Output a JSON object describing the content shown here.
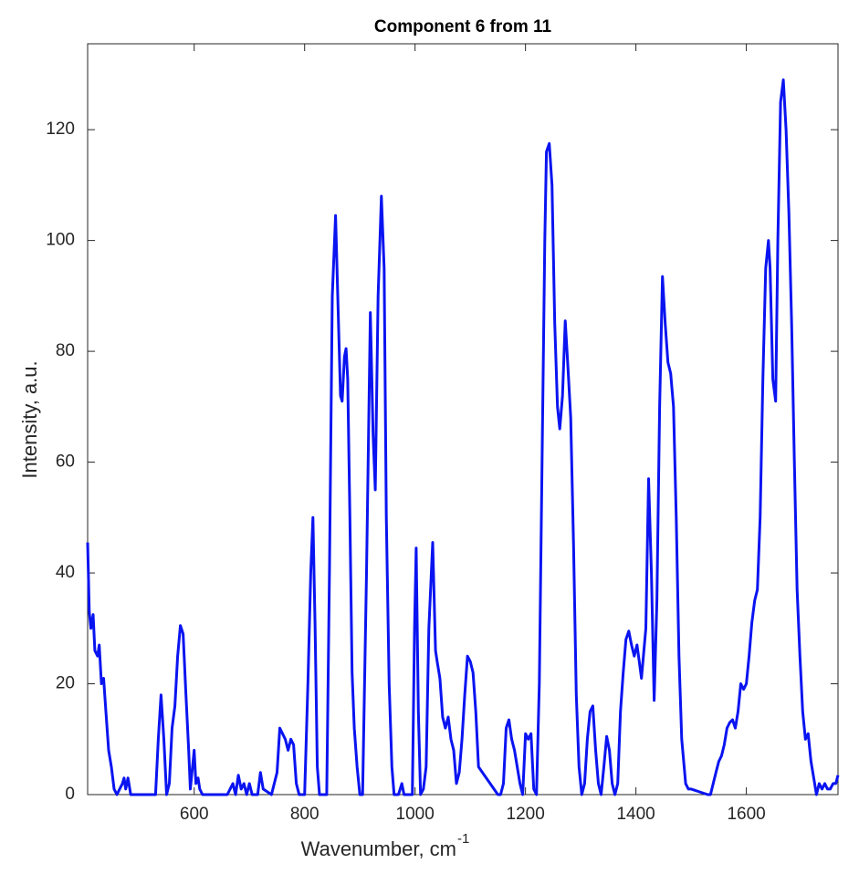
{
  "chart_data": {
    "type": "line",
    "title": "Component 6 from 11",
    "x_label": "Wavenumber, cm",
    "x_label_superscript": "-1",
    "y_label": "Intensity, a.u.",
    "xlim": [
      407,
      1766
    ],
    "ylim": [
      0,
      135.5
    ],
    "xticks": [
      600,
      800,
      1000,
      1200,
      1400,
      1600
    ],
    "yticks": [
      0,
      20,
      40,
      60,
      80,
      100,
      120
    ],
    "x": [
      407,
      410,
      413,
      417,
      420,
      425,
      428,
      432,
      436,
      440,
      445,
      450,
      455,
      460,
      465,
      470,
      473,
      476,
      480,
      485,
      530,
      535,
      540,
      545,
      550,
      555,
      560,
      565,
      570,
      575,
      580,
      585,
      590,
      593,
      597,
      600,
      603,
      607,
      610,
      615,
      660,
      665,
      670,
      675,
      680,
      685,
      690,
      695,
      700,
      705,
      715,
      720,
      725,
      740,
      750,
      755,
      760,
      765,
      770,
      775,
      780,
      785,
      790,
      800,
      806,
      811,
      815,
      819,
      823,
      827,
      840,
      845,
      850,
      856,
      860,
      865,
      868,
      872,
      875,
      878,
      882,
      886,
      890,
      895,
      900,
      905,
      912,
      919,
      924,
      928,
      933,
      939,
      944,
      948,
      953,
      958,
      962,
      970,
      976,
      980,
      995,
      999,
      1002,
      1006,
      1010,
      1015,
      1020,
      1025,
      1032,
      1037,
      1040,
      1045,
      1050,
      1055,
      1060,
      1065,
      1070,
      1075,
      1080,
      1085,
      1090,
      1095,
      1100,
      1105,
      1110,
      1115,
      1150,
      1155,
      1160,
      1165,
      1170,
      1175,
      1180,
      1185,
      1190,
      1195,
      1200,
      1205,
      1210,
      1215,
      1220,
      1225,
      1230,
      1235,
      1238,
      1243,
      1248,
      1253,
      1258,
      1262,
      1267,
      1272,
      1277,
      1282,
      1287,
      1292,
      1297,
      1302,
      1307,
      1312,
      1317,
      1322,
      1327,
      1332,
      1337,
      1342,
      1347,
      1352,
      1357,
      1362,
      1367,
      1372,
      1377,
      1382,
      1387,
      1392,
      1397,
      1402,
      1406,
      1410,
      1418,
      1423,
      1428,
      1433,
      1438,
      1443,
      1448,
      1453,
      1458,
      1463,
      1468,
      1473,
      1478,
      1483,
      1490,
      1495,
      1500,
      1530,
      1535,
      1540,
      1545,
      1550,
      1555,
      1560,
      1565,
      1570,
      1575,
      1580,
      1585,
      1590,
      1595,
      1600,
      1605,
      1610,
      1615,
      1620,
      1625,
      1630,
      1635,
      1640,
      1643,
      1648,
      1653,
      1657,
      1662,
      1667,
      1672,
      1677,
      1682,
      1687,
      1692,
      1697,
      1702,
      1707,
      1712,
      1717,
      1722,
      1727,
      1732,
      1737,
      1742,
      1747,
      1752,
      1757,
      1762,
      1766
    ],
    "series": [
      {
        "color": "#0a14f0",
        "values": [
          45.5,
          33,
          30,
          32.5,
          26,
          25,
          27,
          20,
          21,
          15,
          8,
          5,
          1,
          0,
          1,
          2,
          3,
          1,
          3,
          0,
          0,
          10,
          18,
          10,
          0,
          2,
          12,
          16,
          25,
          30.5,
          29,
          18,
          8,
          1,
          5,
          8,
          2,
          3,
          1,
          0,
          0,
          1,
          2,
          0,
          3.5,
          1,
          2,
          0,
          2,
          0,
          0,
          4,
          1,
          0,
          4,
          12,
          11,
          10,
          8,
          10,
          9,
          2,
          0,
          0,
          20,
          40,
          50,
          30,
          5,
          0,
          0,
          40,
          90,
          104.5,
          90,
          72,
          71,
          79,
          80.5,
          75,
          50,
          22,
          12,
          5,
          0,
          0,
          40,
          87,
          65,
          55,
          90,
          108,
          95,
          50,
          20,
          5,
          0,
          0,
          2,
          0,
          0,
          30,
          44.5,
          15,
          0,
          1,
          5,
          30,
          45.5,
          26,
          24,
          21,
          14,
          12,
          14,
          10,
          8,
          2,
          4,
          10,
          18,
          25,
          24,
          22,
          15,
          5,
          0,
          0,
          2,
          12,
          13.5,
          10,
          8,
          5,
          2,
          0,
          11,
          10,
          11,
          1,
          0,
          20,
          60,
          100,
          116,
          117.5,
          110,
          85,
          70,
          66,
          72,
          85.5,
          77,
          68,
          45,
          18,
          5,
          0,
          2,
          10,
          15,
          16,
          8,
          2,
          0,
          5,
          10.5,
          8,
          2,
          0,
          2,
          15,
          22,
          28,
          29.5,
          27,
          25,
          27,
          24,
          21,
          30,
          57,
          40,
          17,
          35,
          70,
          93.5,
          85,
          78,
          76,
          70,
          50,
          25,
          10,
          2,
          1,
          1,
          0,
          0,
          2,
          4,
          6,
          7,
          9,
          12,
          13,
          13.5,
          12,
          15,
          20,
          19,
          20,
          25,
          31,
          35,
          37,
          50,
          75,
          95,
          100,
          95,
          75,
          71,
          100,
          125,
          129,
          120,
          105,
          85,
          60,
          37,
          25,
          15,
          10,
          11,
          6,
          3,
          0,
          2,
          1,
          2,
          1,
          1,
          2,
          2,
          3.5
        ]
      }
    ]
  }
}
